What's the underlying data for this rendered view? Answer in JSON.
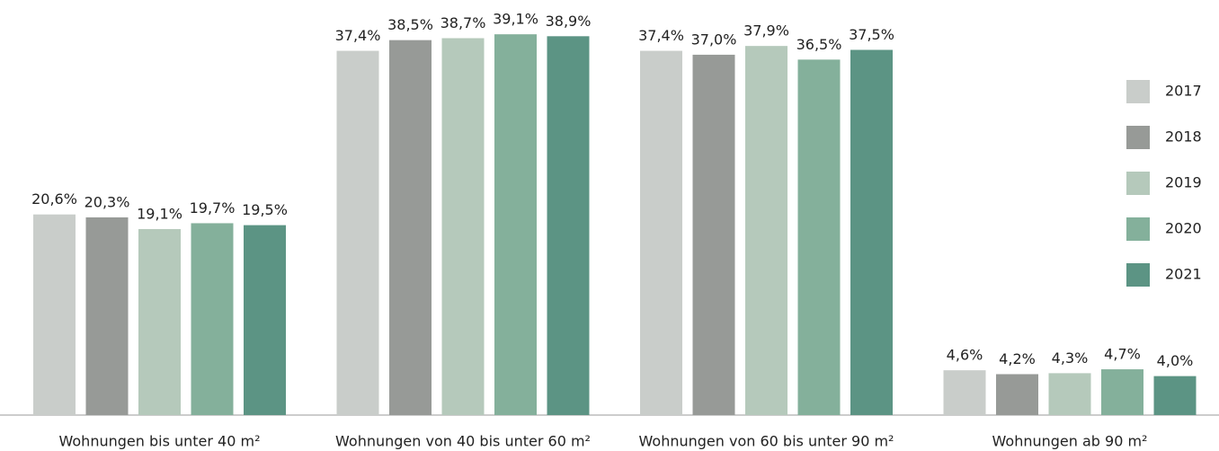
{
  "chart_data": {
    "type": "bar",
    "categories": [
      "Wohnungen bis unter 40 m²",
      "Wohnungen von 40 bis unter 60 m²",
      "Wohnungen von 60 bis unter 90 m²",
      "Wohnungen ab 90 m²"
    ],
    "series": [
      {
        "name": "2017",
        "color": "#c9cdca",
        "values": [
          20.6,
          37.4,
          37.4,
          4.6
        ],
        "value_labels": [
          "20,6%",
          "37,4%",
          "37,4%",
          "4,6%"
        ]
      },
      {
        "name": "2018",
        "color": "#979a97",
        "values": [
          20.3,
          38.5,
          37.0,
          4.2
        ],
        "value_labels": [
          "20,3%",
          "38,5%",
          "37,0%",
          "4,2%"
        ]
      },
      {
        "name": "2019",
        "color": "#b5c9bb",
        "values": [
          19.1,
          38.7,
          37.9,
          4.3
        ],
        "value_labels": [
          "19,1%",
          "38,7%",
          "37,9%",
          "4,3%"
        ]
      },
      {
        "name": "2020",
        "color": "#84b09b",
        "values": [
          19.7,
          39.1,
          36.5,
          4.7
        ],
        "value_labels": [
          "19,7%",
          "39,1%",
          "36,5%",
          "4,7%"
        ]
      },
      {
        "name": "2021",
        "color": "#5c9484",
        "values": [
          19.5,
          38.9,
          37.5,
          4.0
        ],
        "value_labels": [
          "19,5%",
          "38,9%",
          "37,5%",
          "4,0%"
        ]
      }
    ],
    "legend": "right"
  }
}
